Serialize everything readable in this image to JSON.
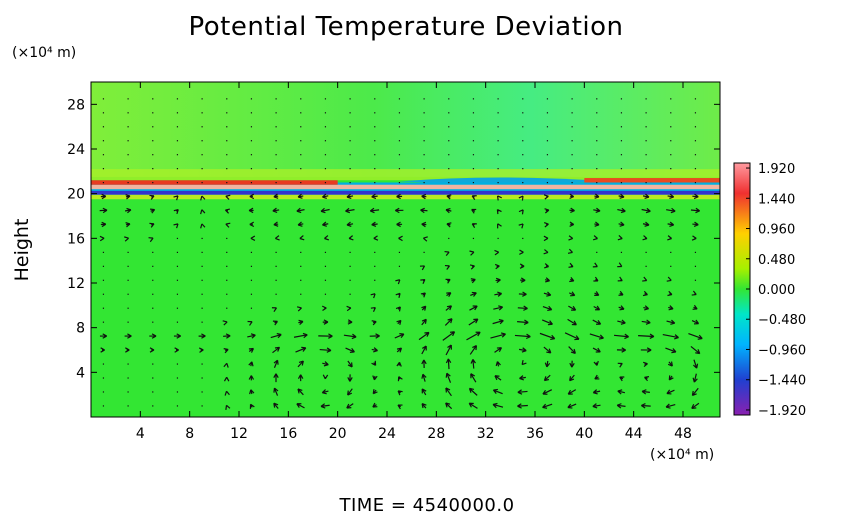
{
  "chart_data": {
    "type": "heatmap",
    "title": "Potential Temperature Deviation",
    "ylabel": "Height",
    "y_unit": "(×10⁴ m)",
    "x_unit": "(×10⁴ m)",
    "xlim": [
      0,
      51
    ],
    "ylim": [
      0,
      30
    ],
    "x_ticks": [
      "4",
      "8",
      "12",
      "16",
      "20",
      "24",
      "28",
      "32",
      "36",
      "40",
      "44",
      "48"
    ],
    "y_ticks": [
      "4",
      "8",
      "12",
      "16",
      "20",
      "24",
      "28"
    ],
    "colorbar_ticks": [
      "1.920",
      "1.440",
      "0.960",
      "0.480",
      "0.000",
      "−0.480",
      "−0.960",
      "−1.440",
      "−1.920"
    ],
    "colorbar_range": [
      -2.0,
      2.0
    ],
    "colors": {
      "background": "#33e633",
      "upper_region": "#5ff05a",
      "positive_band": "#f0b4a0",
      "negative_band": "#3333cc"
    },
    "features": [
      {
        "kind": "positive_band",
        "y": 20.4,
        "x_range": [
          0,
          51
        ]
      },
      {
        "kind": "negative_band",
        "y": 20.1,
        "x_range": [
          0,
          51
        ]
      },
      {
        "kind": "vortex",
        "center": [
          34.5,
          5
        ],
        "radius": [
          7,
          5
        ]
      },
      {
        "kind": "vortex",
        "center": [
          18.5,
          3.5
        ],
        "radius": [
          4,
          3.5
        ]
      },
      {
        "kind": "vortex",
        "center": [
          46.5,
          4
        ],
        "radius": [
          5,
          4
        ]
      }
    ],
    "footer": "TIME  =  4540000.0"
  }
}
